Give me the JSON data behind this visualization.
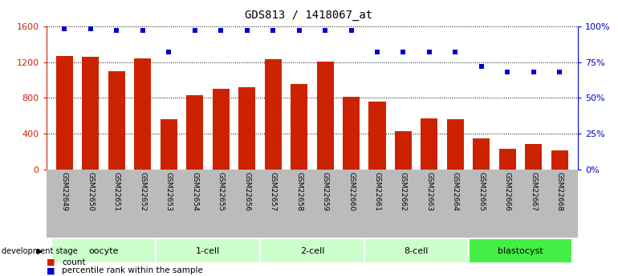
{
  "title": "GDS813 / 1418067_at",
  "samples": [
    "GSM22649",
    "GSM22650",
    "GSM22651",
    "GSM22652",
    "GSM22653",
    "GSM22654",
    "GSM22655",
    "GSM22656",
    "GSM22657",
    "GSM22658",
    "GSM22659",
    "GSM22660",
    "GSM22661",
    "GSM22662",
    "GSM22663",
    "GSM22664",
    "GSM22665",
    "GSM22666",
    "GSM22667",
    "GSM22668"
  ],
  "counts": [
    1270,
    1260,
    1100,
    1240,
    560,
    830,
    900,
    920,
    1230,
    960,
    1210,
    810,
    760,
    430,
    570,
    560,
    350,
    230,
    290,
    220
  ],
  "percentiles": [
    98,
    98,
    97,
    97,
    82,
    97,
    97,
    97,
    97,
    97,
    97,
    97,
    82,
    82,
    82,
    82,
    72,
    68,
    68,
    68
  ],
  "groups": [
    {
      "name": "oocyte",
      "start": 0,
      "end": 3,
      "color": "#ccffcc"
    },
    {
      "name": "1-cell",
      "start": 4,
      "end": 7,
      "color": "#ccffcc"
    },
    {
      "name": "2-cell",
      "start": 8,
      "end": 11,
      "color": "#ccffcc"
    },
    {
      "name": "8-cell",
      "start": 12,
      "end": 15,
      "color": "#ccffcc"
    },
    {
      "name": "blastocyst",
      "start": 16,
      "end": 19,
      "color": "#44ee44"
    }
  ],
  "bar_color": "#cc2200",
  "dot_color": "#0000cc",
  "ylim_left": [
    0,
    1600
  ],
  "ylim_right": [
    0,
    100
  ],
  "yticks_left": [
    0,
    400,
    800,
    1200,
    1600
  ],
  "yticks_right": [
    0,
    25,
    50,
    75,
    100
  ],
  "bg_color": "#ffffff",
  "plot_bg": "#ffffff",
  "tick_area_color": "#bbbbbb",
  "group_border_color": "#ffffff"
}
